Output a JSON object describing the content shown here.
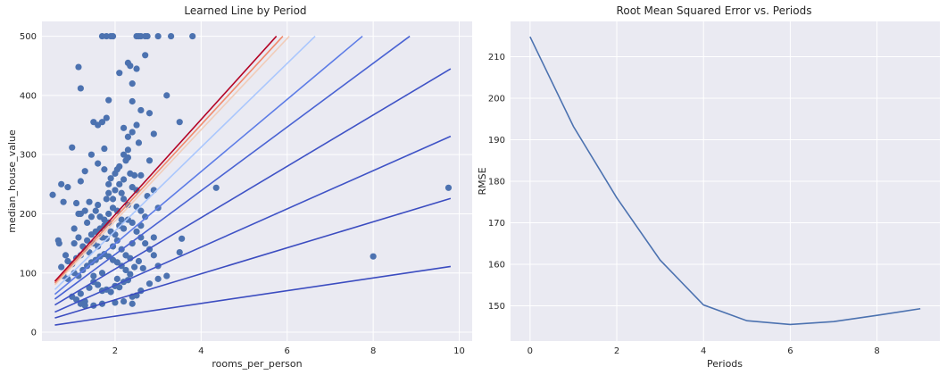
{
  "chart_data": [
    {
      "type": "scatter",
      "title": "Learned Line by Period",
      "xlabel": "rooms_per_person",
      "ylabel": "median_house_value",
      "xlim": [
        0.3,
        10.3
      ],
      "ylim": [
        -15,
        525
      ],
      "xticks": [
        2,
        4,
        6,
        8,
        10
      ],
      "yticks": [
        0,
        100,
        200,
        300,
        400,
        500
      ],
      "grid": true,
      "points": [
        [
          0.55,
          232
        ],
        [
          0.68,
          155
        ],
        [
          0.75,
          250
        ],
        [
          0.8,
          220
        ],
        [
          0.9,
          245
        ],
        [
          1.0,
          312
        ],
        [
          0.7,
          150
        ],
        [
          0.85,
          130
        ],
        [
          1.1,
          218
        ],
        [
          1.2,
          255
        ],
        [
          1.3,
          272
        ],
        [
          1.45,
          300
        ],
        [
          1.6,
          285
        ],
        [
          1.7,
          355
        ],
        [
          1.8,
          225
        ],
        [
          1.9,
          260
        ],
        [
          1.15,
          448
        ],
        [
          1.2,
          412
        ],
        [
          1.7,
          500
        ],
        [
          1.9,
          500
        ],
        [
          1.95,
          500
        ],
        [
          2.5,
          500
        ],
        [
          2.6,
          500
        ],
        [
          2.7,
          500
        ],
        [
          2.75,
          500
        ],
        [
          3.0,
          500
        ],
        [
          3.3,
          500
        ],
        [
          3.8,
          500
        ],
        [
          2.55,
          500
        ],
        [
          1.8,
          500
        ],
        [
          2.1,
          438
        ],
        [
          2.3,
          455
        ],
        [
          2.35,
          450
        ],
        [
          2.4,
          420
        ],
        [
          2.5,
          445
        ],
        [
          2.7,
          468
        ],
        [
          2.6,
          375
        ],
        [
          2.8,
          370
        ],
        [
          3.2,
          400
        ],
        [
          3.5,
          355
        ],
        [
          2.4,
          390
        ],
        [
          1.85,
          392
        ],
        [
          1.8,
          362
        ],
        [
          1.5,
          355
        ],
        [
          1.6,
          350
        ],
        [
          1.75,
          310
        ],
        [
          2.2,
          345
        ],
        [
          2.3,
          330
        ],
        [
          2.4,
          338
        ],
        [
          2.5,
          350
        ],
        [
          2.55,
          320
        ],
        [
          2.2,
          300
        ],
        [
          2.25,
          290
        ],
        [
          2.3,
          295
        ],
        [
          2.1,
          280
        ],
        [
          2.0,
          268
        ],
        [
          2.35,
          268
        ],
        [
          2.45,
          265
        ],
        [
          2.1,
          250
        ],
        [
          2.0,
          240
        ],
        [
          2.15,
          235
        ],
        [
          2.2,
          225
        ],
        [
          2.3,
          215
        ],
        [
          2.5,
          212
        ],
        [
          2.6,
          205
        ],
        [
          2.7,
          195
        ],
        [
          2.9,
          240
        ],
        [
          3.0,
          210
        ],
        [
          2.8,
          290
        ],
        [
          2.9,
          335
        ],
        [
          1.0,
          60
        ],
        [
          1.1,
          55
        ],
        [
          1.2,
          65
        ],
        [
          1.3,
          52
        ],
        [
          1.4,
          75
        ],
        [
          1.5,
          85
        ],
        [
          1.6,
          80
        ],
        [
          1.7,
          70
        ],
        [
          1.8,
          72
        ],
        [
          1.9,
          68
        ],
        [
          2.0,
          78
        ],
        [
          2.1,
          76
        ],
        [
          2.2,
          85
        ],
        [
          2.3,
          88
        ],
        [
          2.4,
          60
        ],
        [
          2.5,
          62
        ],
        [
          2.6,
          70
        ],
        [
          2.8,
          82
        ],
        [
          3.0,
          90
        ],
        [
          3.2,
          95
        ],
        [
          0.9,
          90
        ],
        [
          0.8,
          95
        ],
        [
          0.75,
          110
        ],
        [
          0.9,
          120
        ],
        [
          1.0,
          115
        ],
        [
          1.1,
          125
        ],
        [
          1.2,
          130
        ],
        [
          1.3,
          140
        ],
        [
          1.4,
          135
        ],
        [
          1.5,
          150
        ],
        [
          1.6,
          145
        ],
        [
          1.7,
          160
        ],
        [
          1.8,
          158
        ],
        [
          1.9,
          170
        ],
        [
          2.0,
          165
        ],
        [
          2.1,
          180
        ],
        [
          2.2,
          175
        ],
        [
          2.3,
          190
        ],
        [
          2.4,
          185
        ],
        [
          2.5,
          170
        ],
        [
          2.6,
          160
        ],
        [
          2.7,
          150
        ],
        [
          2.8,
          140
        ],
        [
          2.9,
          130
        ],
        [
          3.0,
          112
        ],
        [
          3.5,
          135
        ],
        [
          3.55,
          158
        ],
        [
          4.35,
          244
        ],
        [
          8.0,
          128
        ],
        [
          9.75,
          244
        ],
        [
          1.05,
          175
        ],
        [
          1.2,
          200
        ],
        [
          1.35,
          185
        ],
        [
          1.45,
          195
        ],
        [
          1.55,
          205
        ],
        [
          1.65,
          195
        ],
        [
          1.75,
          180
        ],
        [
          1.85,
          200
        ],
        [
          1.95,
          210
        ],
        [
          1.05,
          150
        ],
        [
          1.15,
          160
        ],
        [
          1.25,
          145
        ],
        [
          1.35,
          155
        ],
        [
          1.45,
          165
        ],
        [
          1.55,
          170
        ],
        [
          1.65,
          175
        ],
        [
          1.75,
          190
        ],
        [
          1.85,
          185
        ],
        [
          1.95,
          145
        ],
        [
          2.05,
          155
        ],
        [
          2.15,
          140
        ],
        [
          2.25,
          130
        ],
        [
          2.35,
          125
        ],
        [
          2.45,
          110
        ],
        [
          2.55,
          120
        ],
        [
          2.65,
          108
        ],
        [
          1.05,
          100
        ],
        [
          1.15,
          95
        ],
        [
          1.25,
          105
        ],
        [
          1.35,
          112
        ],
        [
          1.45,
          118
        ],
        [
          1.55,
          122
        ],
        [
          1.65,
          128
        ],
        [
          1.75,
          132
        ],
        [
          1.85,
          128
        ],
        [
          1.95,
          122
        ],
        [
          2.05,
          118
        ],
        [
          2.15,
          112
        ],
        [
          2.25,
          105
        ],
        [
          2.35,
          98
        ],
        [
          1.5,
          45
        ],
        [
          1.7,
          48
        ],
        [
          2.0,
          50
        ],
        [
          2.2,
          52
        ],
        [
          2.4,
          48
        ],
        [
          1.2,
          48
        ],
        [
          1.3,
          45
        ],
        [
          1.5,
          95
        ],
        [
          1.7,
          100
        ],
        [
          2.05,
          90
        ],
        [
          2.4,
          150
        ],
        [
          2.6,
          180
        ],
        [
          2.75,
          230
        ],
        [
          2.9,
          160
        ],
        [
          2.05,
          205
        ],
        [
          2.15,
          190
        ],
        [
          1.85,
          235
        ],
        [
          1.95,
          225
        ],
        [
          1.6,
          215
        ],
        [
          1.4,
          220
        ],
        [
          1.3,
          205
        ],
        [
          1.15,
          200
        ],
        [
          2.5,
          240
        ],
        [
          2.4,
          245
        ],
        [
          2.2,
          258
        ],
        [
          2.05,
          275
        ],
        [
          1.75,
          275
        ],
        [
          1.85,
          250
        ],
        [
          2.6,
          265
        ],
        [
          2.3,
          308
        ]
      ],
      "lines": [
        {
          "x": [
            0.6,
            9.8
          ],
          "y": [
            12,
            111
          ],
          "color": "#3b4cc0"
        },
        {
          "x": [
            0.6,
            9.8
          ],
          "y": [
            24,
            226
          ],
          "color": "#3b4cc0"
        },
        {
          "x": [
            0.6,
            9.8
          ],
          "y": [
            34,
            331
          ],
          "color": "#3f53c6"
        },
        {
          "x": [
            0.6,
            9.8
          ],
          "y": [
            46,
            445
          ],
          "color": "#3f53c6"
        },
        {
          "x": [
            0.6,
            8.85
          ],
          "y": [
            56,
            500
          ],
          "color": "#4a63d3"
        },
        {
          "x": [
            0.6,
            7.75
          ],
          "y": [
            64,
            500
          ],
          "color": "#5d7ce6"
        },
        {
          "x": [
            0.6,
            6.65
          ],
          "y": [
            72,
            500
          ],
          "color": "#aac7fd"
        },
        {
          "x": [
            0.6,
            6.05
          ],
          "y": [
            80,
            500
          ],
          "color": "#f1cdba"
        },
        {
          "x": [
            0.6,
            5.9
          ],
          "y": [
            83,
            500
          ],
          "color": "#f08a6c"
        },
        {
          "x": [
            0.6,
            5.75
          ],
          "y": [
            86,
            500
          ],
          "color": "#b40426"
        }
      ],
      "marker_color": "#4c72b0"
    },
    {
      "type": "line",
      "title": "Root Mean Squared Error vs. Periods",
      "xlabel": "Periods",
      "ylabel": "RMSE",
      "xlim": [
        -0.45,
        9.45
      ],
      "ylim": [
        141.5,
        218.5
      ],
      "xticks": [
        0,
        2,
        4,
        6,
        8
      ],
      "yticks": [
        150,
        160,
        170,
        180,
        190,
        200,
        210
      ],
      "grid": true,
      "x": [
        0,
        1,
        2,
        3,
        4,
        5,
        6,
        7,
        8,
        9
      ],
      "series": [
        {
          "values": [
            214.8,
            193.2,
            176.0,
            161.0,
            150.2,
            146.4,
            145.5,
            146.2,
            147.7,
            149.3
          ],
          "color": "#4c72b0"
        }
      ]
    }
  ]
}
